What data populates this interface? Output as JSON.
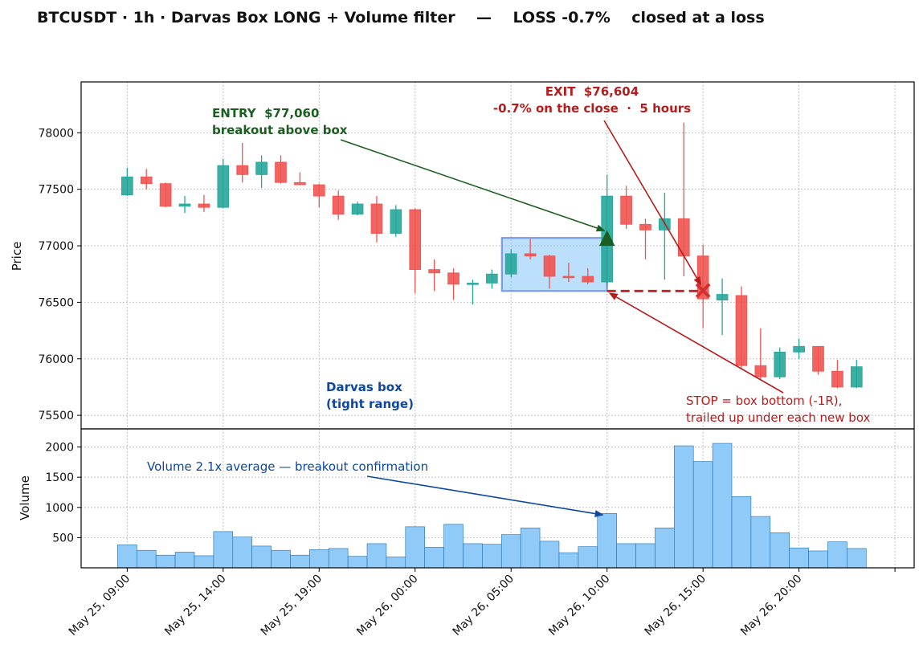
{
  "chart_data": {
    "type": "candlestick",
    "title": "BTCUSDT · 1h · Darvas Box LONG + Volume filter    —    LOSS -0.7%    closed at a loss",
    "price_panel": {
      "ylabel": "Price",
      "ylim": [
        75380,
        78450
      ],
      "yticks": [
        75500,
        76000,
        76500,
        77000,
        77500,
        78000
      ],
      "grid": true
    },
    "volume_panel": {
      "ylabel": "Volume",
      "ylim": [
        0,
        2300
      ],
      "yticks": [
        500,
        1000,
        1500,
        2000
      ],
      "grid": true
    },
    "x_axis": {
      "tick_labels": [
        {
          "index": 0,
          "label": "May 25, 09:00"
        },
        {
          "index": 5,
          "label": "May 25, 14:00"
        },
        {
          "index": 10,
          "label": "May 25, 19:00"
        },
        {
          "index": 15,
          "label": "May 26, 00:00"
        },
        {
          "index": 20,
          "label": "May 26, 05:00"
        },
        {
          "index": 25,
          "label": "May 26, 10:00"
        },
        {
          "index": 30,
          "label": "May 26, 15:00"
        },
        {
          "index": 35,
          "label": "May 26, 20:00"
        },
        {
          "index": 40,
          "label": ""
        }
      ],
      "xlim": [
        -2.4,
        41
      ]
    },
    "candles": [
      {
        "o": 77450,
        "h": 77690,
        "l": 77440,
        "c": 77610,
        "v": 380
      },
      {
        "o": 77610,
        "h": 77680,
        "l": 77500,
        "c": 77550,
        "v": 290
      },
      {
        "o": 77550,
        "h": 77560,
        "l": 77340,
        "c": 77350,
        "v": 210
      },
      {
        "o": 77350,
        "h": 77440,
        "l": 77290,
        "c": 77370,
        "v": 260
      },
      {
        "o": 77370,
        "h": 77450,
        "l": 77300,
        "c": 77340,
        "v": 200
      },
      {
        "o": 77340,
        "h": 77770,
        "l": 77330,
        "c": 77710,
        "v": 600
      },
      {
        "o": 77710,
        "h": 77910,
        "l": 77560,
        "c": 77630,
        "v": 510
      },
      {
        "o": 77630,
        "h": 77800,
        "l": 77510,
        "c": 77740,
        "v": 360
      },
      {
        "o": 77740,
        "h": 77800,
        "l": 77550,
        "c": 77560,
        "v": 290
      },
      {
        "o": 77560,
        "h": 77650,
        "l": 77540,
        "c": 77540,
        "v": 210
      },
      {
        "o": 77540,
        "h": 77550,
        "l": 77340,
        "c": 77440,
        "v": 300
      },
      {
        "o": 77440,
        "h": 77490,
        "l": 77230,
        "c": 77280,
        "v": 320
      },
      {
        "o": 77280,
        "h": 77390,
        "l": 77270,
        "c": 77370,
        "v": 190
      },
      {
        "o": 77370,
        "h": 77440,
        "l": 77030,
        "c": 77110,
        "v": 400
      },
      {
        "o": 77110,
        "h": 77360,
        "l": 77080,
        "c": 77320,
        "v": 180
      },
      {
        "o": 77320,
        "h": 77330,
        "l": 76580,
        "c": 76790,
        "v": 680
      },
      {
        "o": 76790,
        "h": 76880,
        "l": 76600,
        "c": 76760,
        "v": 340
      },
      {
        "o": 76760,
        "h": 76800,
        "l": 76520,
        "c": 76660,
        "v": 720
      },
      {
        "o": 76660,
        "h": 76700,
        "l": 76480,
        "c": 76670,
        "v": 400
      },
      {
        "o": 76670,
        "h": 76790,
        "l": 76620,
        "c": 76750,
        "v": 390
      },
      {
        "o": 76750,
        "h": 76970,
        "l": 76720,
        "c": 76930,
        "v": 550
      },
      {
        "o": 76930,
        "h": 77060,
        "l": 76880,
        "c": 76910,
        "v": 660
      },
      {
        "o": 76910,
        "h": 76920,
        "l": 76620,
        "c": 76730,
        "v": 440
      },
      {
        "o": 76730,
        "h": 76850,
        "l": 76680,
        "c": 76720,
        "v": 250
      },
      {
        "o": 76730,
        "h": 76800,
        "l": 76660,
        "c": 76680,
        "v": 350
      },
      {
        "o": 76680,
        "h": 77630,
        "l": 76640,
        "c": 77440,
        "v": 900
      },
      {
        "o": 77440,
        "h": 77530,
        "l": 77150,
        "c": 77190,
        "v": 400
      },
      {
        "o": 77190,
        "h": 77240,
        "l": 76880,
        "c": 77140,
        "v": 400
      },
      {
        "o": 77140,
        "h": 77470,
        "l": 76700,
        "c": 77240,
        "v": 660
      },
      {
        "o": 77240,
        "h": 78090,
        "l": 76730,
        "c": 76910,
        "v": 2020
      },
      {
        "o": 76910,
        "h": 77010,
        "l": 76270,
        "c": 76530,
        "v": 1760
      },
      {
        "o": 76520,
        "h": 76710,
        "l": 76210,
        "c": 76570,
        "v": 2060
      },
      {
        "o": 76560,
        "h": 76640,
        "l": 75910,
        "c": 75940,
        "v": 1180
      },
      {
        "o": 75940,
        "h": 76270,
        "l": 75820,
        "c": 75840,
        "v": 850
      },
      {
        "o": 75840,
        "h": 76100,
        "l": 75820,
        "c": 76060,
        "v": 580
      },
      {
        "o": 76060,
        "h": 76180,
        "l": 76000,
        "c": 76110,
        "v": 330
      },
      {
        "o": 76110,
        "h": 76110,
        "l": 75860,
        "c": 75890,
        "v": 280
      },
      {
        "o": 75890,
        "h": 75990,
        "l": 75740,
        "c": 75750,
        "v": 430
      },
      {
        "o": 75750,
        "h": 75990,
        "l": 75740,
        "c": 75930,
        "v": 320
      }
    ],
    "darvas_box": {
      "start_index": 20,
      "end_index": 25,
      "top": 77070,
      "bottom": 76600
    },
    "entry": {
      "index": 25,
      "price": 77060
    },
    "exit": {
      "index": 30,
      "price": 76604
    },
    "stop": {
      "from_index": 25,
      "to_index": 30,
      "price": 76600
    },
    "annotations": {
      "entry_line1": "ENTRY  $77,060",
      "entry_line2": "breakout above box",
      "exit_line1": "EXIT  $76,604",
      "exit_line2": "-0.7% on the close  ·  5 hours",
      "box_line1": "Darvas box",
      "box_line2": "(tight range)",
      "stop_line1": "STOP = box bottom (-1R),",
      "stop_line2": "trailed up under each new box",
      "volume_note": "Volume 2.1x average — breakout confirmation"
    },
    "colors": {
      "up": "#26a69a",
      "down": "#ef5350",
      "volume": "#90caf9",
      "volume_edge": "#1e6fb0",
      "box_fill": "#90caf9",
      "box_edge": "#5c7fd6",
      "entry": "#1b5e20",
      "exit": "#b71c1c",
      "stop_line": "#c62828",
      "box_label": "#0d47a1",
      "volume_note": "#0d47a1"
    }
  }
}
